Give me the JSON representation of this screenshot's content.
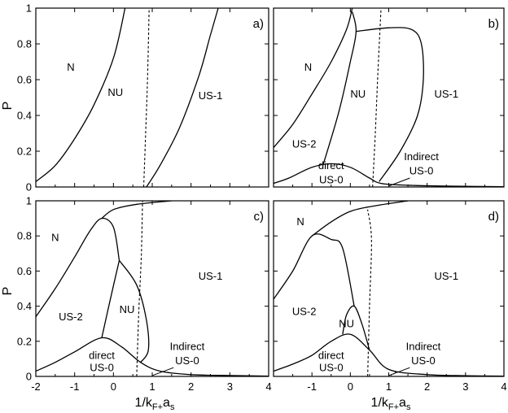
{
  "chart_data": [
    {
      "panel": "a)",
      "type": "line",
      "ylabel": "P",
      "xlim": [
        -2,
        4
      ],
      "ylim": [
        0,
        1
      ],
      "region_labels": [
        {
          "text": "N",
          "x": -1.1,
          "y": 0.65
        },
        {
          "text": "NU",
          "x": 0.05,
          "y": 0.51
        },
        {
          "text": "US-1",
          "x": 2.5,
          "y": 0.49
        }
      ],
      "curves": [
        {
          "style": "solid",
          "points": [
            [
              -2,
              0.03
            ],
            [
              -1.5,
              0.12
            ],
            [
              -1,
              0.27
            ],
            [
              -0.5,
              0.46
            ],
            [
              0,
              0.72
            ],
            [
              0.3,
              1.0
            ]
          ]
        },
        {
          "style": "dashed",
          "points": [
            [
              0.78,
              0
            ],
            [
              0.83,
              0.3
            ],
            [
              0.88,
              0.62
            ],
            [
              0.92,
              1.0
            ]
          ]
        },
        {
          "style": "solid",
          "points": [
            [
              0.85,
              0
            ],
            [
              1.2,
              0.12
            ],
            [
              1.7,
              0.33
            ],
            [
              2.2,
              0.62
            ],
            [
              2.5,
              0.85
            ],
            [
              2.7,
              1.0
            ]
          ]
        }
      ]
    },
    {
      "panel": "b)",
      "type": "line",
      "xlim": [
        -2,
        4
      ],
      "ylim": [
        0,
        1
      ],
      "region_labels": [
        {
          "text": "N",
          "x": -1.1,
          "y": 0.65
        },
        {
          "text": "NU",
          "x": 0.2,
          "y": 0.5
        },
        {
          "text": "US-1",
          "x": 2.5,
          "y": 0.5
        },
        {
          "text": "US-2",
          "x": -1.2,
          "y": 0.22
        },
        {
          "text": "direct",
          "x": -0.5,
          "y": 0.1
        },
        {
          "text": "US-0",
          "x": -0.5,
          "y": 0.02
        },
        {
          "text": "Indirect",
          "x": 1.85,
          "y": 0.15
        },
        {
          "text": "US-0",
          "x": 1.85,
          "y": 0.07
        }
      ],
      "curves": [
        {
          "style": "solid",
          "points": [
            [
              -2,
              0.22
            ],
            [
              -1.5,
              0.35
            ],
            [
              -1,
              0.52
            ],
            [
              -0.5,
              0.7
            ],
            [
              -0.1,
              0.88
            ],
            [
              0.05,
              1.0
            ]
          ]
        },
        {
          "style": "solid",
          "points": [
            [
              -0.7,
              0.13
            ],
            [
              -0.3,
              0.42
            ],
            [
              0,
              0.7
            ],
            [
              0.15,
              0.87
            ],
            [
              0.05,
              0.98
            ]
          ]
        },
        {
          "style": "solid",
          "points": [
            [
              0.15,
              0.87
            ],
            [
              1,
              0.89
            ],
            [
              1.6,
              0.88
            ],
            [
              1.85,
              0.8
            ],
            [
              1.9,
              0.6
            ],
            [
              1.75,
              0.4
            ],
            [
              1.3,
              0.2
            ],
            [
              0.75,
              0.03
            ]
          ]
        },
        {
          "style": "solid",
          "points": [
            [
              -2,
              0.02
            ],
            [
              -1.6,
              0.05
            ],
            [
              -1,
              0.11
            ],
            [
              -0.5,
              0.13
            ],
            [
              0,
              0.11
            ],
            [
              0.5,
              0.05
            ],
            [
              0.8,
              0.02
            ],
            [
              1.5,
              0.01
            ],
            [
              2.5,
              0.005
            ],
            [
              4,
              0.002
            ]
          ]
        },
        {
          "style": "dashed",
          "points": [
            [
              0.58,
              0
            ],
            [
              0.65,
              0.3
            ],
            [
              0.72,
              0.65
            ],
            [
              0.8,
              1.0
            ]
          ]
        }
      ]
    },
    {
      "panel": "c)",
      "type": "line",
      "ylabel": "P",
      "xlabel": "1/k_F+a_s",
      "xlim": [
        -2,
        4
      ],
      "ylim": [
        0,
        1
      ],
      "x_ticks": [
        -2,
        -1,
        0,
        1,
        2,
        3,
        4
      ],
      "region_labels": [
        {
          "text": "N",
          "x": -1.5,
          "y": 0.77
        },
        {
          "text": "NU",
          "x": 0.35,
          "y": 0.36
        },
        {
          "text": "US-1",
          "x": 2.5,
          "y": 0.55
        },
        {
          "text": "US-2",
          "x": -1.1,
          "y": 0.32
        },
        {
          "text": "direct",
          "x": -0.3,
          "y": 0.1
        },
        {
          "text": "US-0",
          "x": -0.3,
          "y": 0.03
        },
        {
          "text": "Indirect",
          "x": 1.9,
          "y": 0.15
        },
        {
          "text": "US-0",
          "x": 1.9,
          "y": 0.07
        }
      ],
      "curves": [
        {
          "style": "solid",
          "points": [
            [
              -2,
              0.34
            ],
            [
              -1.5,
              0.5
            ],
            [
              -1,
              0.68
            ],
            [
              -0.6,
              0.83
            ],
            [
              -0.3,
              0.9
            ],
            [
              0,
              0.85
            ],
            [
              0.15,
              0.66
            ]
          ]
        },
        {
          "style": "solid",
          "points": [
            [
              -0.3,
              0.9
            ],
            [
              0,
              0.95
            ],
            [
              0.6,
              0.98
            ],
            [
              1.5,
              1.0
            ]
          ]
        },
        {
          "style": "solid",
          "points": [
            [
              0.15,
              0.66
            ],
            [
              -0.1,
              0.42
            ],
            [
              -0.3,
              0.22
            ]
          ]
        },
        {
          "style": "solid",
          "points": [
            [
              0.15,
              0.66
            ],
            [
              0.6,
              0.52
            ],
            [
              0.85,
              0.32
            ],
            [
              0.9,
              0.15
            ],
            [
              0.7,
              0.08
            ]
          ]
        },
        {
          "style": "solid",
          "points": [
            [
              -2,
              0.03
            ],
            [
              -1.5,
              0.08
            ],
            [
              -1,
              0.14
            ],
            [
              -0.3,
              0.22
            ],
            [
              0.2,
              0.17
            ],
            [
              0.7,
              0.08
            ],
            [
              1.2,
              0.03
            ],
            [
              2,
              0.01
            ],
            [
              3,
              0.005
            ],
            [
              4,
              0.002
            ]
          ]
        },
        {
          "style": "dashed",
          "points": [
            [
              0.6,
              0
            ],
            [
              0.65,
              0.35
            ],
            [
              0.72,
              0.7
            ],
            [
              0.75,
              1.0
            ]
          ]
        }
      ]
    },
    {
      "panel": "d)",
      "type": "line",
      "xlabel": "1/k_F+a_s",
      "xlim": [
        -2,
        4
      ],
      "ylim": [
        0,
        1
      ],
      "x_ticks": [
        -2,
        -1,
        0,
        1,
        2,
        3,
        4
      ],
      "region_labels": [
        {
          "text": "N",
          "x": -1.3,
          "y": 0.86
        },
        {
          "text": "NU",
          "x": -0.1,
          "y": 0.28
        },
        {
          "text": "US-1",
          "x": 2.5,
          "y": 0.55
        },
        {
          "text": "US-2",
          "x": -1.2,
          "y": 0.35
        },
        {
          "text": "direct",
          "x": -0.5,
          "y": 0.1
        },
        {
          "text": "US-0",
          "x": -0.5,
          "y": 0.03
        },
        {
          "text": "Indirect",
          "x": 1.9,
          "y": 0.15
        },
        {
          "text": "US-0",
          "x": 1.9,
          "y": 0.07
        }
      ],
      "curves": [
        {
          "style": "solid",
          "points": [
            [
              -2,
              0.44
            ],
            [
              -1.5,
              0.6
            ],
            [
              -1,
              0.8
            ],
            [
              -0.5,
              0.78
            ],
            [
              -0.2,
              0.73
            ],
            [
              0.1,
              0.4
            ]
          ]
        },
        {
          "style": "solid",
          "points": [
            [
              -1,
              0.8
            ],
            [
              -0.5,
              0.88
            ],
            [
              0,
              0.94
            ],
            [
              0.6,
              0.97
            ],
            [
              1.5,
              1.0
            ]
          ]
        },
        {
          "style": "solid",
          "points": [
            [
              -0.2,
              0.24
            ],
            [
              -0.1,
              0.35
            ],
            [
              0.1,
              0.4
            ],
            [
              0.3,
              0.3
            ],
            [
              0.5,
              0.15
            ]
          ]
        },
        {
          "style": "solid",
          "points": [
            [
              -2,
              0.03
            ],
            [
              -1.5,
              0.07
            ],
            [
              -1,
              0.12
            ],
            [
              -0.5,
              0.2
            ],
            [
              0,
              0.24
            ],
            [
              0.5,
              0.15
            ],
            [
              1,
              0.04
            ],
            [
              2,
              0.01
            ],
            [
              3,
              0.004
            ],
            [
              4,
              0.002
            ]
          ]
        },
        {
          "style": "dashed",
          "points": [
            [
              0.45,
              0
            ],
            [
              0.5,
              0.4
            ],
            [
              0.55,
              0.78
            ],
            [
              0.45,
              0.95
            ]
          ]
        },
        {
          "style": "dotted",
          "points": [
            [
              1.0,
              0
            ],
            [
              1.1,
              0.01
            ],
            [
              1.2,
              0.03
            ]
          ]
        }
      ]
    }
  ],
  "axes": {
    "y_tick_labels": [
      "0",
      "0.2",
      "0.4",
      "0.6",
      "0.8",
      "1"
    ],
    "x_tick_labels": [
      "-2",
      "-1",
      "0",
      "1",
      "2",
      "3",
      "4"
    ]
  }
}
